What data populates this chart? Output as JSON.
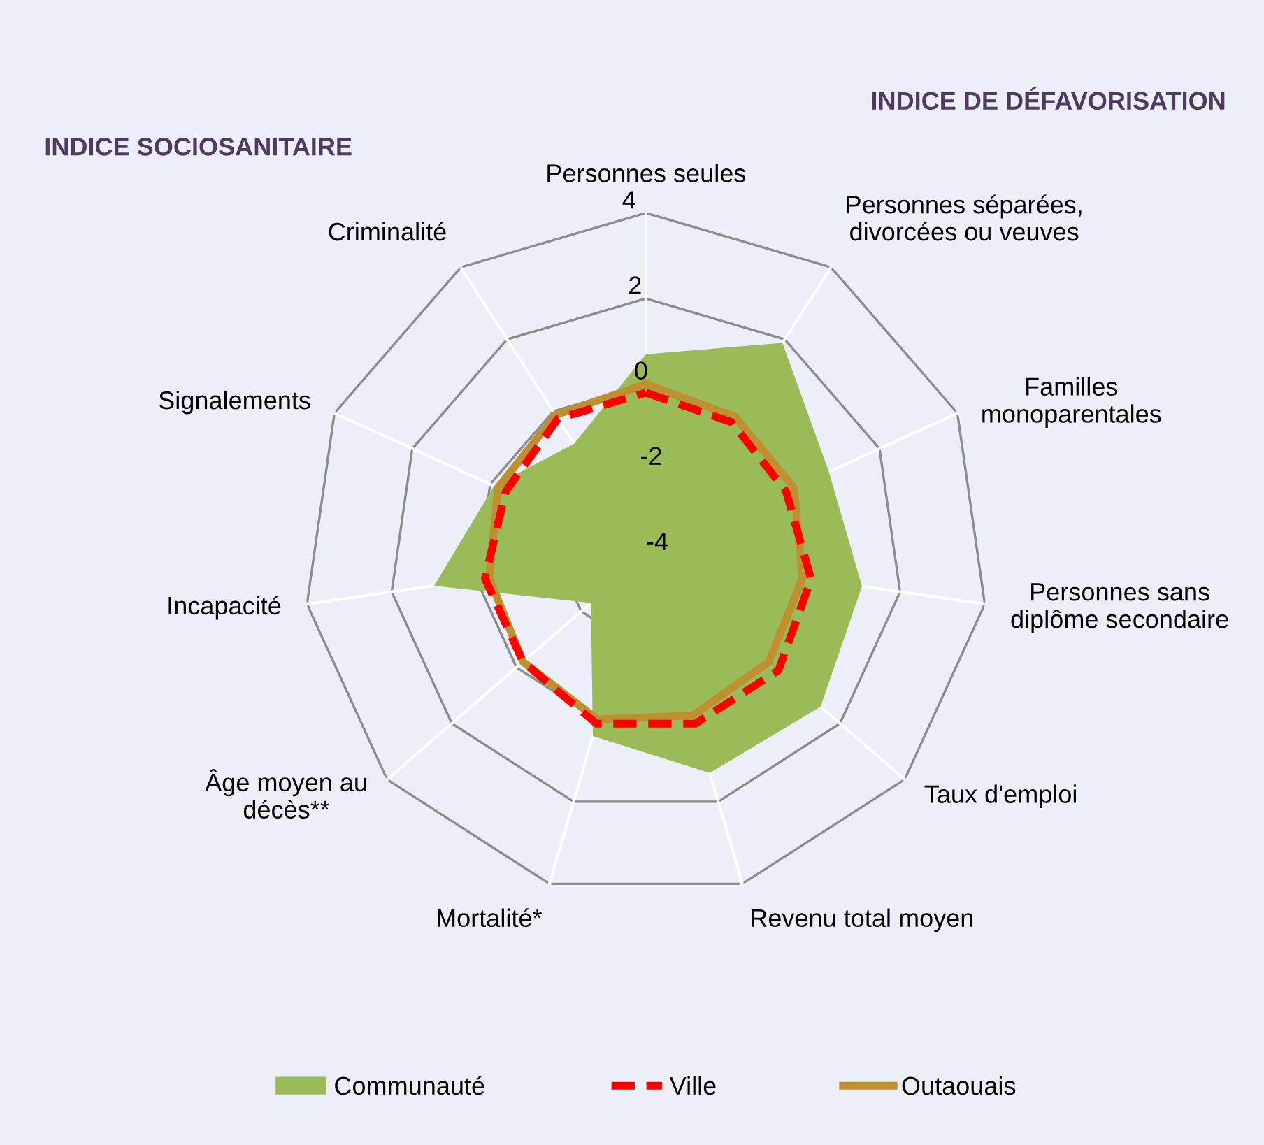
{
  "chart_data": {
    "type": "radar",
    "categories": [
      "Personnes seules",
      "Personnes séparées,\ndivorcées ou veuves",
      "Familles\nmonoparentales",
      "Personnes sans\ndiplôme secondaire",
      "Taux d'emploi",
      "Revenu total moyen",
      "Mortalité*",
      "Âge moyen au\ndécès**",
      "Incapacité",
      "Signalements",
      "Criminalité"
    ],
    "series": [
      {
        "name": "Communauté",
        "color": "#9bbb59",
        "values": [
          0.7,
          1.9,
          0.7,
          1.1,
          1.4,
          1.3,
          0.4,
          -2.3,
          1.0,
          -0.1,
          -0.9
        ]
      },
      {
        "name": "Ville",
        "line_style": "dashed",
        "color": "#ff0000",
        "values": [
          -0.2,
          -0.3,
          -0.4,
          -0.1,
          0.1,
          0.1,
          0.1,
          -0.2,
          -0.2,
          -0.4,
          -0.2
        ]
      },
      {
        "name": "Outaouais",
        "line_style": "solid",
        "color": "#bf8f30",
        "values": [
          0.0,
          -0.15,
          -0.2,
          -0.3,
          -0.2,
          -0.1,
          0.0,
          -0.2,
          -0.3,
          -0.2,
          -0.1
        ]
      }
    ],
    "ylim": [
      -4,
      4
    ],
    "yticks": [
      -4,
      -2,
      0,
      2,
      4
    ],
    "grid": true,
    "legend": "bottom",
    "annotations": [
      "INDICE SOCIOSANITAIRE",
      "INDICE DE DÉFAVORISATION"
    ]
  }
}
